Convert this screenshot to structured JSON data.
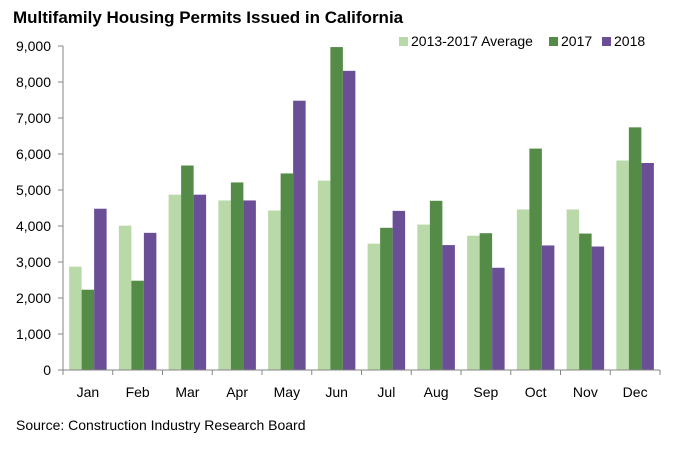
{
  "chart_data": {
    "type": "bar",
    "title": "Multifamily Housing Permits Issued in California",
    "xlabel": "",
    "ylabel": "",
    "ylim": [
      0,
      9000
    ],
    "y_ticks": [
      0,
      1000,
      2000,
      3000,
      4000,
      5000,
      6000,
      7000,
      8000,
      9000
    ],
    "y_tick_labels": [
      "0",
      "1,000",
      "2,000",
      "3,000",
      "4,000",
      "5,000",
      "6,000",
      "7,000",
      "8,000",
      "9,000"
    ],
    "categories": [
      "Jan",
      "Feb",
      "Mar",
      "Apr",
      "May",
      "Jun",
      "Jul",
      "Aug",
      "Sep",
      "Oct",
      "Nov",
      "Dec"
    ],
    "series": [
      {
        "name": "2013-2017 Average",
        "color": "#b9d9a9",
        "values": [
          2870,
          4010,
          4870,
          4710,
          4430,
          5260,
          3510,
          4040,
          3730,
          4460,
          4460,
          5820
        ]
      },
      {
        "name": "2017",
        "color": "#548b46",
        "values": [
          2230,
          2480,
          5680,
          5210,
          5460,
          8970,
          3950,
          4700,
          3800,
          6150,
          3790,
          6740
        ]
      },
      {
        "name": "2018",
        "color": "#6a4f96",
        "values": [
          4480,
          3810,
          4870,
          4710,
          7480,
          8310,
          4420,
          3470,
          2840,
          3460,
          3430,
          5750
        ]
      }
    ],
    "legend_position": "top-right",
    "grid": false,
    "source": "Source: Construction Industry Research Board"
  }
}
